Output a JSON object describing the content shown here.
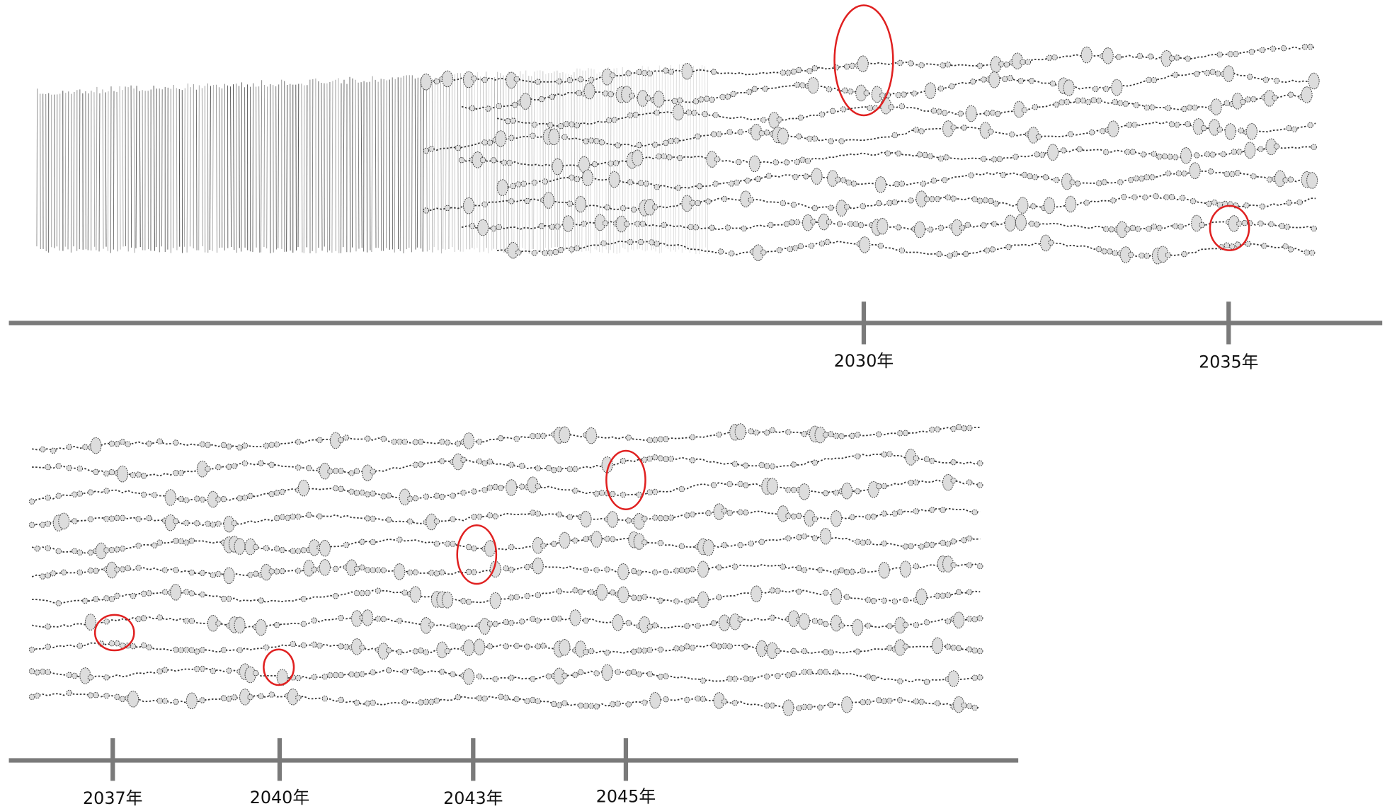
{
  "timeline_top": {
    "labels": [
      "2030年",
      "2035年"
    ]
  },
  "timeline_bottom": {
    "labels": [
      "2037年",
      "2040年",
      "2043年",
      "2045年"
    ]
  }
}
